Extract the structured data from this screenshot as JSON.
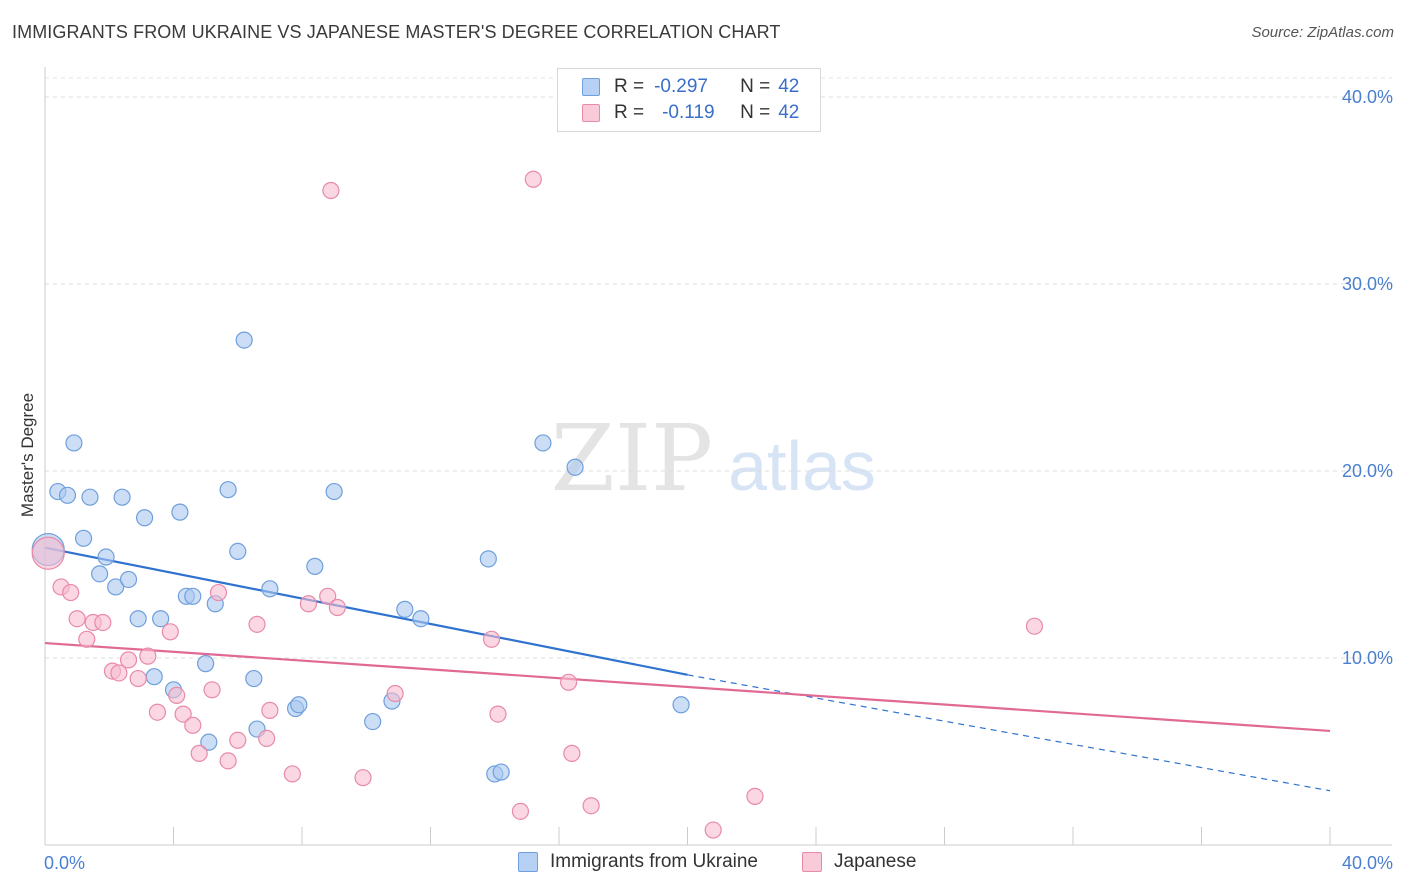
{
  "header": {
    "title": "IMMIGRANTS FROM UKRAINE VS JAPANESE MASTER'S DEGREE CORRELATION CHART",
    "source": "Source: ZipAtlas.com"
  },
  "legend_top": {
    "rows": [
      {
        "r_label": "R =",
        "r_value": "-0.297",
        "n_label": "N =",
        "n_value": "42"
      },
      {
        "r_label": "R =",
        "r_value": "-0.119",
        "n_label": "N =",
        "n_value": "42"
      }
    ]
  },
  "watermark": {
    "zip": "ZIP",
    "atlas": "atlas"
  },
  "colors": {
    "blue_fill": "#a9c8f0",
    "blue_stroke": "#6f9fdc",
    "blue_line": "#2f72d0",
    "pink_fill": "#f6bdd0",
    "pink_stroke": "#e88aa8",
    "pink_line": "#e06a93",
    "tick_label": "#4a7fd0"
  },
  "chart_data": {
    "type": "scatter",
    "title": "IMMIGRANTS FROM UKRAINE VS JAPANESE MASTER'S DEGREE CORRELATION CHART",
    "xlabel": "",
    "ylabel": "Master's Degree",
    "xlim": [
      0,
      40
    ],
    "ylim": [
      0,
      40
    ],
    "x_tick_labels": [
      "0.0%",
      "40.0%"
    ],
    "y_ticks": [
      10,
      20,
      30,
      40
    ],
    "y_tick_labels": [
      "10.0%",
      "20.0%",
      "30.0%",
      "40.0%"
    ],
    "grid": true,
    "legend_position": "bottom",
    "series": [
      {
        "name": "Immigrants from Ukraine",
        "color": "#a9c8f0",
        "r": -0.297,
        "n": 42,
        "trend": {
          "x": [
            0,
            20
          ],
          "y": [
            15.9,
            9.1
          ],
          "dashed_to": [
            40,
            2.9
          ]
        },
        "points": [
          [
            0.1,
            15.8
          ],
          [
            0.4,
            18.9
          ],
          [
            0.7,
            18.7
          ],
          [
            0.9,
            21.5
          ],
          [
            1.2,
            16.4
          ],
          [
            1.4,
            18.6
          ],
          [
            1.7,
            14.5
          ],
          [
            1.9,
            15.4
          ],
          [
            2.2,
            13.8
          ],
          [
            2.4,
            18.6
          ],
          [
            2.6,
            14.2
          ],
          [
            2.9,
            12.1
          ],
          [
            3.1,
            17.5
          ],
          [
            3.4,
            9.0
          ],
          [
            3.6,
            12.1
          ],
          [
            4.0,
            8.3
          ],
          [
            4.2,
            17.8
          ],
          [
            4.4,
            13.3
          ],
          [
            4.6,
            13.3
          ],
          [
            5.0,
            9.7
          ],
          [
            5.1,
            5.5
          ],
          [
            5.3,
            12.9
          ],
          [
            5.7,
            19.0
          ],
          [
            6.0,
            15.7
          ],
          [
            6.2,
            27.0
          ],
          [
            6.5,
            8.9
          ],
          [
            6.6,
            6.2
          ],
          [
            7.0,
            13.7
          ],
          [
            7.8,
            7.3
          ],
          [
            7.9,
            7.5
          ],
          [
            8.4,
            14.9
          ],
          [
            9.0,
            18.9
          ],
          [
            10.2,
            6.6
          ],
          [
            10.8,
            7.7
          ],
          [
            11.2,
            12.6
          ],
          [
            11.7,
            12.1
          ],
          [
            13.8,
            15.3
          ],
          [
            14.0,
            3.8
          ],
          [
            14.2,
            3.9
          ],
          [
            15.5,
            21.5
          ],
          [
            16.5,
            20.2
          ],
          [
            19.8,
            7.5
          ]
        ]
      },
      {
        "name": "Japanese",
        "color": "#f6bdd0",
        "r": -0.119,
        "n": 42,
        "trend": {
          "x": [
            0,
            40
          ],
          "y": [
            10.8,
            6.1
          ]
        },
        "points": [
          [
            0.1,
            15.6
          ],
          [
            0.5,
            13.8
          ],
          [
            0.8,
            13.5
          ],
          [
            1.0,
            12.1
          ],
          [
            1.3,
            11.0
          ],
          [
            1.5,
            11.9
          ],
          [
            1.8,
            11.9
          ],
          [
            2.1,
            9.3
          ],
          [
            2.3,
            9.2
          ],
          [
            2.6,
            9.9
          ],
          [
            2.9,
            8.9
          ],
          [
            3.2,
            10.1
          ],
          [
            3.5,
            7.1
          ],
          [
            3.9,
            11.4
          ],
          [
            4.1,
            8.0
          ],
          [
            4.3,
            7.0
          ],
          [
            4.6,
            6.4
          ],
          [
            4.8,
            4.9
          ],
          [
            5.2,
            8.3
          ],
          [
            5.4,
            13.5
          ],
          [
            5.7,
            4.5
          ],
          [
            6.0,
            5.6
          ],
          [
            6.6,
            11.8
          ],
          [
            6.9,
            5.7
          ],
          [
            7.0,
            7.2
          ],
          [
            7.7,
            3.8
          ],
          [
            8.2,
            12.9
          ],
          [
            8.9,
            35.0
          ],
          [
            8.8,
            13.3
          ],
          [
            9.1,
            12.7
          ],
          [
            9.9,
            3.6
          ],
          [
            10.9,
            8.1
          ],
          [
            13.9,
            11.0
          ],
          [
            14.1,
            7.0
          ],
          [
            14.8,
            1.8
          ],
          [
            15.2,
            35.6
          ],
          [
            16.3,
            8.7
          ],
          [
            16.4,
            4.9
          ],
          [
            17.0,
            2.1
          ],
          [
            20.8,
            0.8
          ],
          [
            22.1,
            2.6
          ],
          [
            30.8,
            11.7
          ]
        ]
      }
    ]
  }
}
